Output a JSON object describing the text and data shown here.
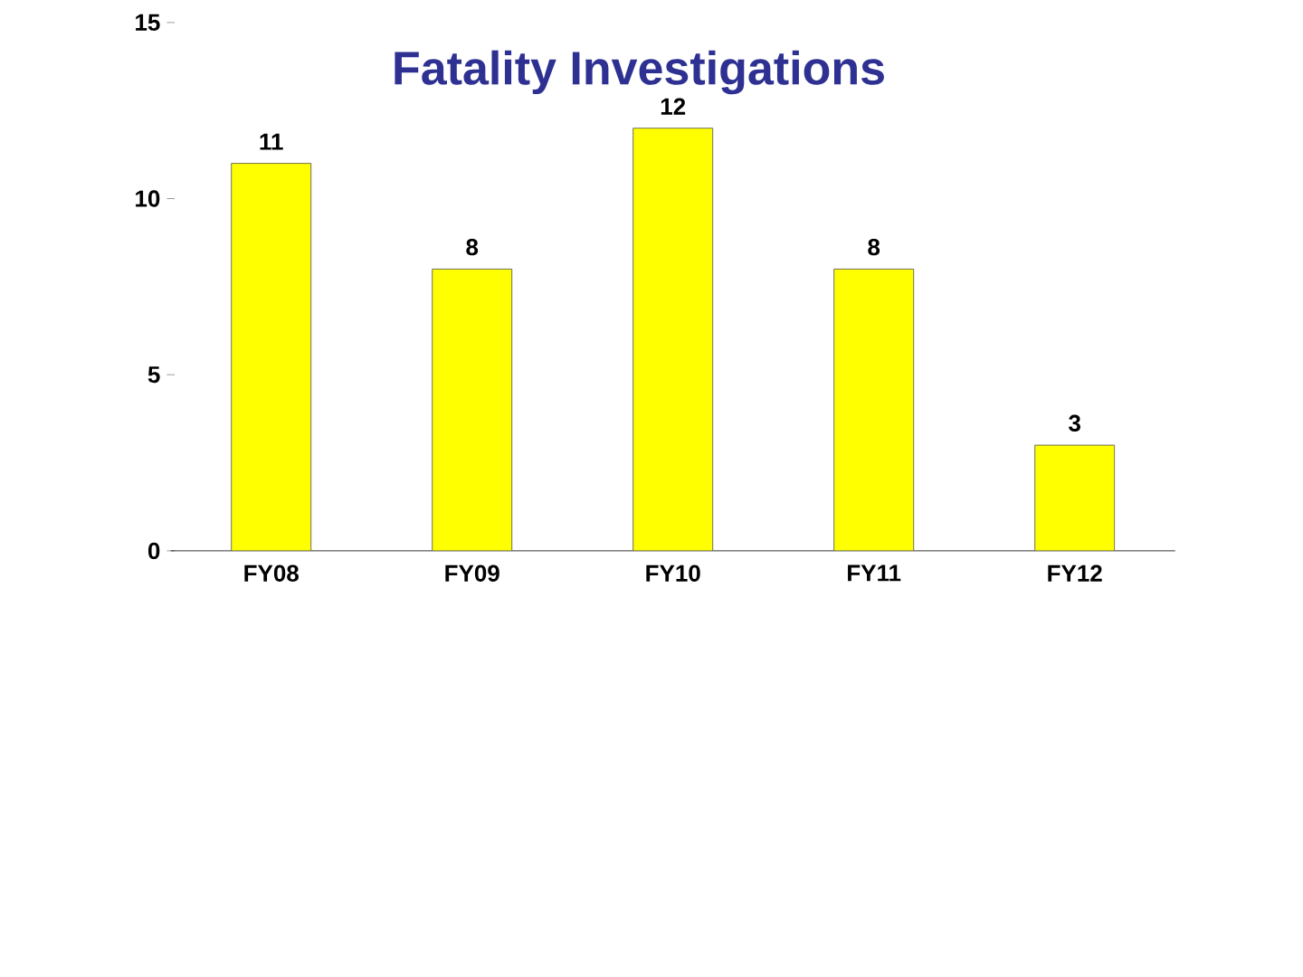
{
  "chart_data": {
    "type": "bar",
    "title": "Fatality Investigations",
    "categories": [
      "FY08",
      "FY09",
      "FY10",
      "FY11",
      "FY12"
    ],
    "values": [
      11,
      8,
      12,
      8,
      3
    ],
    "color": "#ffff00",
    "ylim": [
      0,
      15
    ],
    "yticks": [
      0,
      5,
      10,
      15
    ],
    "data_labels": true
  }
}
